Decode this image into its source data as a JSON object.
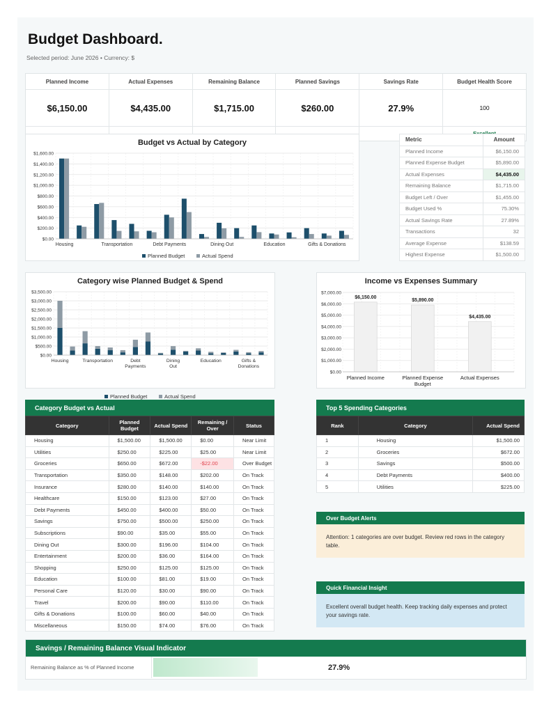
{
  "header": {
    "title": "Budget Dashboard.",
    "subtitle": "Selected period: June 2026  •  Currency: $"
  },
  "kpis": [
    {
      "label": "Planned Income",
      "value": "$6,150.00",
      "sub": ""
    },
    {
      "label": "Actual Expenses",
      "value": "$4,435.00",
      "sub": ""
    },
    {
      "label": "Remaining Balance",
      "value": "$1,715.00",
      "sub": ""
    },
    {
      "label": "Planned Savings",
      "value": "$260.00",
      "sub": ""
    },
    {
      "label": "Savings Rate",
      "value": "27.9%",
      "sub": ""
    },
    {
      "label": "Budget Health Score",
      "value": "100",
      "sub": "Excellent"
    }
  ],
  "metrics": {
    "header_metric": "Metric",
    "header_amount": "Amount",
    "rows": [
      {
        "metric": "Planned Income",
        "amount": "$6,150.00"
      },
      {
        "metric": "Planned Expense Budget",
        "amount": "$5,890.00"
      },
      {
        "metric": "Actual Expenses",
        "amount": "$4,435.00"
      },
      {
        "metric": "Remaining Balance",
        "amount": "$1,715.00"
      },
      {
        "metric": "Budget Left / Over",
        "amount": "$1,455.00"
      },
      {
        "metric": "Budget Used %",
        "amount": "75.30%"
      },
      {
        "metric": "Actual Savings Rate",
        "amount": "27.89%"
      },
      {
        "metric": "Transactions",
        "amount": "32"
      },
      {
        "metric": "Average Expense",
        "amount": "$138.59"
      },
      {
        "metric": "Highest Expense",
        "amount": "$1,500.00"
      }
    ]
  },
  "chart_data": [
    {
      "type": "bar",
      "title": "Budget vs Actual by Category",
      "categories": [
        "Housing",
        "Utilities",
        "Groceries",
        "Transportation",
        "Insurance",
        "Healthcare",
        "Debt Payments",
        "Savings",
        "Subscriptions",
        "Dining Out",
        "Entertainment",
        "Shopping",
        "Education",
        "Personal Care",
        "Travel",
        "Gifts & Donations",
        "Miscellaneous"
      ],
      "tick_labels": [
        "Housing",
        "Transportation",
        "Debt Payments",
        "Dining Out",
        "Education",
        "Gifts & Donations"
      ],
      "series": [
        {
          "name": "Planned Budget",
          "values": [
            1500,
            250,
            650,
            350,
            280,
            150,
            450,
            750,
            90,
            300,
            200,
            250,
            100,
            120,
            200,
            100,
            150
          ],
          "color": "#1d4f6b"
        },
        {
          "name": "Actual Spend",
          "values": [
            1500,
            225,
            672,
            148,
            140,
            123,
            400,
            500,
            35,
            196,
            36,
            125,
            81,
            30,
            90,
            60,
            74
          ],
          "color": "#8e9ba5"
        }
      ],
      "y_ticks": [
        "$0.00",
        "$200.00",
        "$400.00",
        "$600.00",
        "$800.00",
        "$1,000.00",
        "$1,200.00",
        "$1,400.00",
        "$1,600.00"
      ],
      "ylim": [
        0,
        1600
      ],
      "legend": "bottom"
    },
    {
      "type": "bar",
      "title": "Category wise Planned Budget & Spend",
      "stacked": true,
      "categories": [
        "Housing",
        "Utilities",
        "Groceries",
        "Transportation",
        "Insurance",
        "Healthcare",
        "Debt Payments",
        "Savings",
        "Subscriptions",
        "Dining Out",
        "Entertainment",
        "Shopping",
        "Education",
        "Personal Care",
        "Travel",
        "Gifts & Donations",
        "Miscellaneous"
      ],
      "tick_labels": [
        "Housing",
        "Transportation",
        "Debt Payments",
        "Dining Out",
        "Education",
        "Gifts & Donations"
      ],
      "series": [
        {
          "name": "Planned Budget",
          "values": [
            1500,
            250,
            650,
            350,
            280,
            150,
            450,
            750,
            90,
            300,
            200,
            250,
            100,
            120,
            200,
            100,
            150
          ],
          "color": "#1d4f6b"
        },
        {
          "name": "Actual Spend",
          "values": [
            1500,
            225,
            672,
            148,
            140,
            123,
            400,
            500,
            35,
            196,
            36,
            125,
            81,
            30,
            90,
            60,
            74
          ],
          "color": "#8e9ba5"
        }
      ],
      "y_ticks": [
        "$0.00",
        "$500.00",
        "$1,000.00",
        "$1,500.00",
        "$2,000.00",
        "$2,500.00",
        "$3,000.00",
        "$3,500.00"
      ],
      "ylim": [
        0,
        3500
      ],
      "legend": "bottom"
    },
    {
      "type": "bar",
      "title": "Income vs Expenses Summary",
      "categories": [
        "Planned Income",
        "Planned Expense Budget",
        "Actual Expenses"
      ],
      "values": [
        6150,
        5890,
        4435
      ],
      "data_labels": [
        "$6,150.00",
        "$5,890.00",
        "$4,435.00"
      ],
      "y_ticks": [
        "$0.00",
        "$1,000.00",
        "$2,000.00",
        "$3,000.00",
        "$4,000.00",
        "$5,000.00",
        "$6,000.00",
        "$7,000.00"
      ],
      "ylim": [
        0,
        7000
      ]
    }
  ],
  "category_table": {
    "title": "Category Budget vs Actual",
    "headers": [
      "Category",
      "Planned Budget",
      "Actual Spend",
      "Remaining / Over",
      "Status"
    ],
    "rows": [
      [
        "Housing",
        "$1,500.00",
        "$1,500.00",
        "$0.00",
        "Near Limit"
      ],
      [
        "Utilities",
        "$250.00",
        "$225.00",
        "$25.00",
        "Near Limit"
      ],
      [
        "Groceries",
        "$650.00",
        "$672.00",
        "-$22.00",
        "Over Budget"
      ],
      [
        "Transportation",
        "$350.00",
        "$148.00",
        "$202.00",
        "On Track"
      ],
      [
        "Insurance",
        "$280.00",
        "$140.00",
        "$140.00",
        "On Track"
      ],
      [
        "Healthcare",
        "$150.00",
        "$123.00",
        "$27.00",
        "On Track"
      ],
      [
        "Debt Payments",
        "$450.00",
        "$400.00",
        "$50.00",
        "On Track"
      ],
      [
        "Savings",
        "$750.00",
        "$500.00",
        "$250.00",
        "On Track"
      ],
      [
        "Subscriptions",
        "$90.00",
        "$35.00",
        "$55.00",
        "On Track"
      ],
      [
        "Dining Out",
        "$300.00",
        "$196.00",
        "$104.00",
        "On Track"
      ],
      [
        "Entertainment",
        "$200.00",
        "$36.00",
        "$164.00",
        "On Track"
      ],
      [
        "Shopping",
        "$250.00",
        "$125.00",
        "$125.00",
        "On Track"
      ],
      [
        "Education",
        "$100.00",
        "$81.00",
        "$19.00",
        "On Track"
      ],
      [
        "Personal Care",
        "$120.00",
        "$30.00",
        "$90.00",
        "On Track"
      ],
      [
        "Travel",
        "$200.00",
        "$90.00",
        "$110.00",
        "On Track"
      ],
      [
        "Gifts & Donations",
        "$100.00",
        "$60.00",
        "$40.00",
        "On Track"
      ],
      [
        "Miscellaneous",
        "$150.00",
        "$74.00",
        "$76.00",
        "On Track"
      ]
    ]
  },
  "top5": {
    "title": "Top 5 Spending Categories",
    "headers": [
      "Rank",
      "Category",
      "Actual Spend"
    ],
    "rows": [
      [
        "1",
        "Housing",
        "$1,500.00"
      ],
      [
        "2",
        "Groceries",
        "$672.00"
      ],
      [
        "3",
        "Savings",
        "$500.00"
      ],
      [
        "4",
        "Debt Payments",
        "$400.00"
      ],
      [
        "5",
        "Utilities",
        "$225.00"
      ]
    ]
  },
  "alerts": {
    "title": "Over Budget Alerts",
    "text": "Attention: 1 categories are over budget. Review red rows in the category table."
  },
  "insight": {
    "title": "Quick Financial Insight",
    "text": "Excellent overall budget health. Keep tracking daily expenses and protect your savings rate."
  },
  "savings_indicator": {
    "title": "Savings / Remaining Balance Visual Indicator",
    "label": "Remaining Balance as % of Planned Income",
    "value": "27.9%",
    "fraction": 0.279
  }
}
